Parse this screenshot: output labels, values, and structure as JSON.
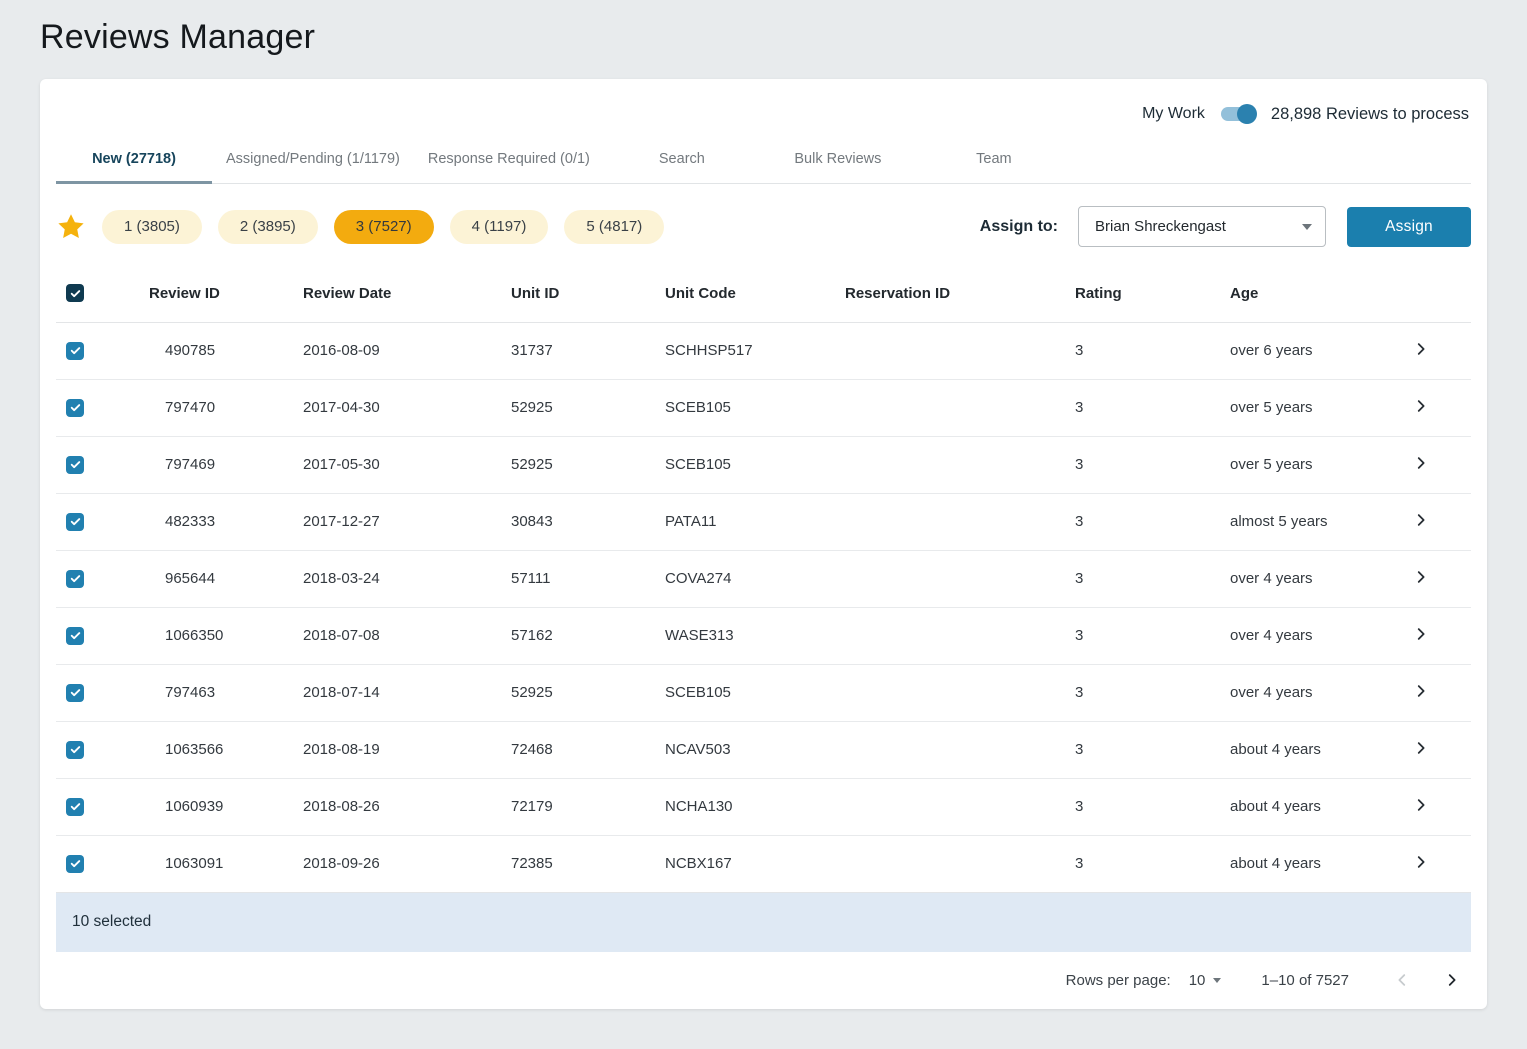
{
  "page_title": "Reviews Manager",
  "toolbar": {
    "my_work_label": "My Work",
    "my_work_toggle_on": true,
    "reviews_to_process": "28,898 Reviews to process"
  },
  "tabs": [
    {
      "label": "New (27718)",
      "active": true
    },
    {
      "label": "Assigned/Pending (1/1179)",
      "active": false
    },
    {
      "label": "Response Required (0/1)",
      "active": false
    },
    {
      "label": "Search",
      "active": false
    },
    {
      "label": "Bulk Reviews",
      "active": false
    },
    {
      "label": "Team",
      "active": false
    }
  ],
  "star_filter": {
    "icon": "star-icon",
    "chips": [
      {
        "label": "1 (3805)",
        "selected": false
      },
      {
        "label": "2 (3895)",
        "selected": false
      },
      {
        "label": "3 (7527)",
        "selected": true
      },
      {
        "label": "4 (1197)",
        "selected": false
      },
      {
        "label": "5 (4817)",
        "selected": false
      }
    ]
  },
  "assign": {
    "label": "Assign to:",
    "selected_user": "Brian Shreckengast",
    "button_label": "Assign"
  },
  "table": {
    "columns": [
      "Review ID",
      "Review Date",
      "Unit ID",
      "Unit Code",
      "Reservation ID",
      "Rating",
      "Age"
    ],
    "select_all_checked": true,
    "rows": [
      {
        "checked": true,
        "review_id": "490785",
        "review_date": "2016-08-09",
        "unit_id": "31737",
        "unit_code": "SCHHSP517",
        "reservation_id": "",
        "rating": "3",
        "age": "over 6 years"
      },
      {
        "checked": true,
        "review_id": "797470",
        "review_date": "2017-04-30",
        "unit_id": "52925",
        "unit_code": "SCEB105",
        "reservation_id": "",
        "rating": "3",
        "age": "over 5 years"
      },
      {
        "checked": true,
        "review_id": "797469",
        "review_date": "2017-05-30",
        "unit_id": "52925",
        "unit_code": "SCEB105",
        "reservation_id": "",
        "rating": "3",
        "age": "over 5 years"
      },
      {
        "checked": true,
        "review_id": "482333",
        "review_date": "2017-12-27",
        "unit_id": "30843",
        "unit_code": "PATA11",
        "reservation_id": "",
        "rating": "3",
        "age": "almost 5 years"
      },
      {
        "checked": true,
        "review_id": "965644",
        "review_date": "2018-03-24",
        "unit_id": "57111",
        "unit_code": "COVA274",
        "reservation_id": "",
        "rating": "3",
        "age": "over 4 years"
      },
      {
        "checked": true,
        "review_id": "1066350",
        "review_date": "2018-07-08",
        "unit_id": "57162",
        "unit_code": "WASE313",
        "reservation_id": "",
        "rating": "3",
        "age": "over 4 years"
      },
      {
        "checked": true,
        "review_id": "797463",
        "review_date": "2018-07-14",
        "unit_id": "52925",
        "unit_code": "SCEB105",
        "reservation_id": "",
        "rating": "3",
        "age": "over 4 years"
      },
      {
        "checked": true,
        "review_id": "1063566",
        "review_date": "2018-08-19",
        "unit_id": "72468",
        "unit_code": "NCAV503",
        "reservation_id": "",
        "rating": "3",
        "age": "about 4 years"
      },
      {
        "checked": true,
        "review_id": "1060939",
        "review_date": "2018-08-26",
        "unit_id": "72179",
        "unit_code": "NCHA130",
        "reservation_id": "",
        "rating": "3",
        "age": "about 4 years"
      },
      {
        "checked": true,
        "review_id": "1063091",
        "review_date": "2018-09-26",
        "unit_id": "72385",
        "unit_code": "NCBX167",
        "reservation_id": "",
        "rating": "3",
        "age": "about 4 years"
      }
    ]
  },
  "footer": {
    "selected_text": "10 selected",
    "rows_per_page_label": "Rows per page:",
    "rows_per_page_value": "10",
    "range_text": "1–10 of 7527"
  },
  "colors": {
    "assign_button": "#1b7fae",
    "chip_selected_bg": "#f3ab0f",
    "chip_bg": "#fcf3d6",
    "star": "#f5b20d",
    "selection_bar_bg": "#dfe9f4",
    "active_tab_text": "#17455c",
    "tab_indicator": "#7e95a3",
    "row_checkbox": "#2180b0",
    "select_all_checkbox": "#0f3a50",
    "toggle_thumb": "#2b81af",
    "toggle_track": "#93c0da"
  }
}
